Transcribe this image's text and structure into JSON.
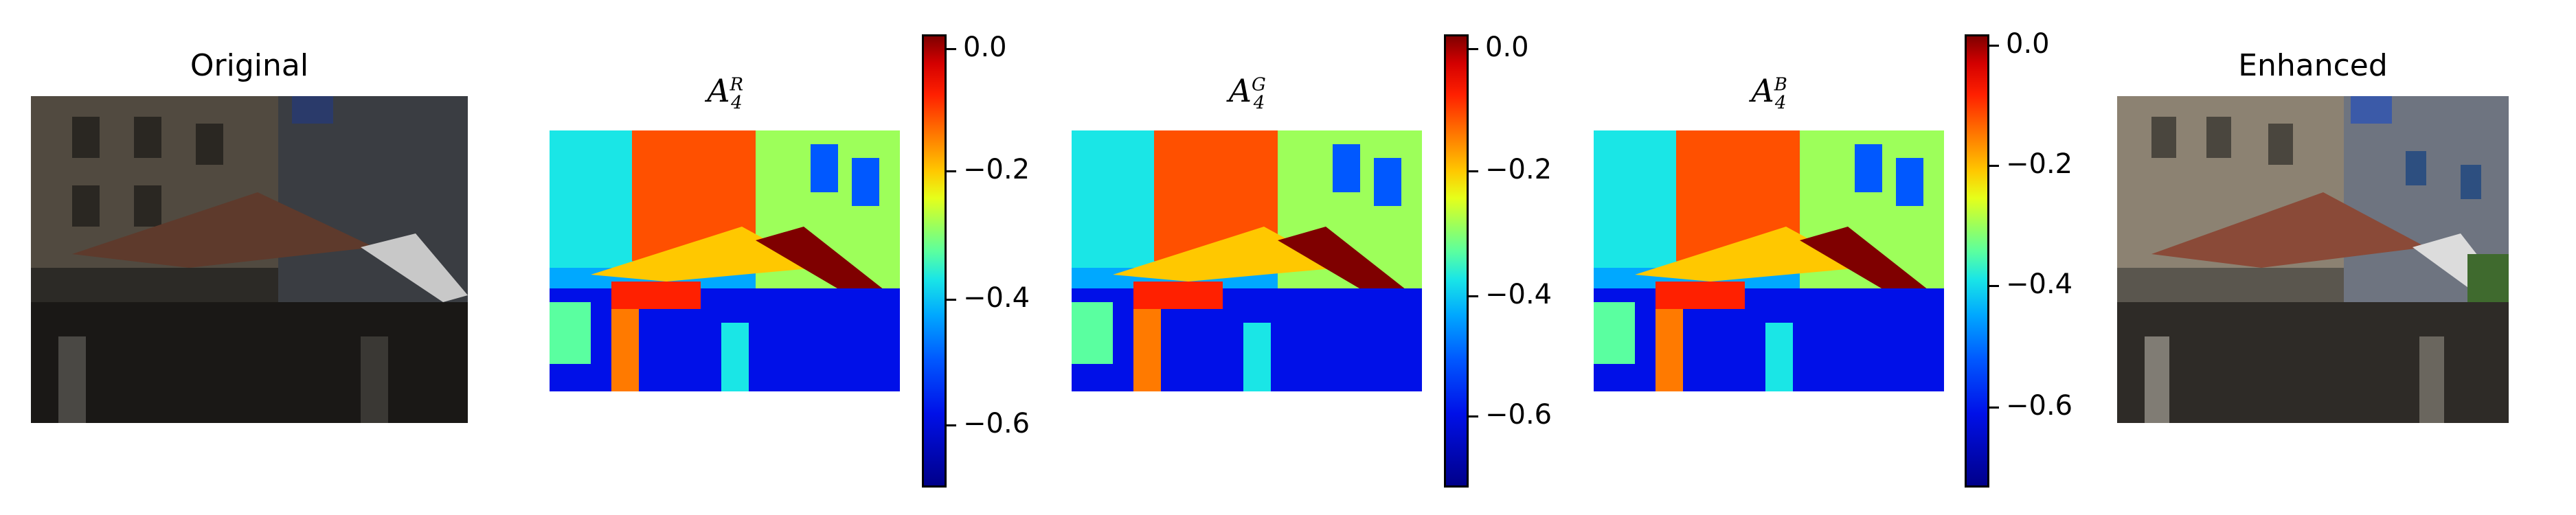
{
  "panels": {
    "original_title": "Original",
    "enhanced_title": "Enhanced",
    "attention_maps": [
      {
        "symbol": "A",
        "sup": "R",
        "sub": "4",
        "tick_labels": [
          "0.0",
          "−0.2",
          "−0.4",
          "−0.6"
        ]
      },
      {
        "symbol": "A",
        "sup": "G",
        "sub": "4",
        "tick_labels": [
          "0.0",
          "−0.2",
          "−0.4",
          "−0.6"
        ]
      },
      {
        "symbol": "A",
        "sup": "B",
        "sub": "4",
        "tick_labels": [
          "0.0",
          "−0.2",
          "−0.4",
          "−0.6"
        ]
      }
    ]
  },
  "colorbar": {
    "colormap": "jet",
    "range": [
      -0.7,
      0.02
    ],
    "ticks": [
      0.0,
      -0.2,
      -0.4,
      -0.6
    ]
  },
  "colors": {
    "background": "#ffffff",
    "sky": "#2a3a6a",
    "umbrella": "#8a4a38",
    "jet_max": "#7f0000",
    "jet_min": "#00008a"
  }
}
